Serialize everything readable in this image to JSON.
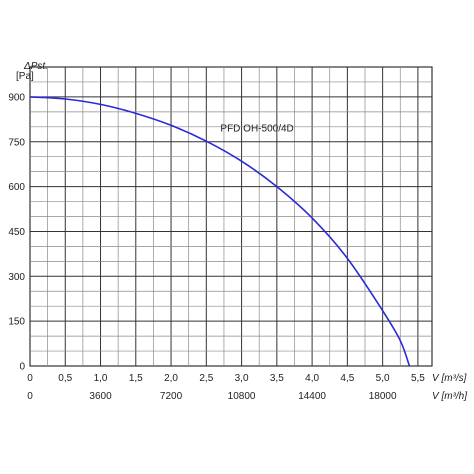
{
  "chart_data": {
    "type": "line",
    "title": "",
    "ylabel_symbol": "ΔPst.",
    "ylabel_unit": "[Pa]",
    "xlabel_primary": "V [m³/s]",
    "xlabel_secondary": "V [m³/h]",
    "xlim": [
      0,
      5.7
    ],
    "ylim": [
      0,
      1000
    ],
    "x_ticks_primary": [
      "0",
      "0,5",
      "1,0",
      "1,5",
      "2,0",
      "2,5",
      "3,0",
      "3,5",
      "4,0",
      "4,5",
      "5,0",
      "5,5"
    ],
    "x_ticks_secondary": [
      "0",
      "3600",
      "7200",
      "10800",
      "14400",
      "18000"
    ],
    "y_ticks": [
      "0",
      "150",
      "300",
      "450",
      "600",
      "750",
      "900"
    ],
    "grid": true,
    "series": [
      {
        "name": "PFD OH-500/4D",
        "x": [
          0,
          0.5,
          1.0,
          1.5,
          2.0,
          2.5,
          3.0,
          3.5,
          4.0,
          4.5,
          5.0,
          5.25,
          5.38
        ],
        "y": [
          900,
          893,
          875,
          845,
          805,
          752,
          685,
          600,
          495,
          360,
          185,
          85,
          0
        ]
      }
    ],
    "colors": {
      "curve": "#2a2ad8",
      "grid_major": "#333333",
      "grid_minor": "#8a8a8a"
    }
  }
}
